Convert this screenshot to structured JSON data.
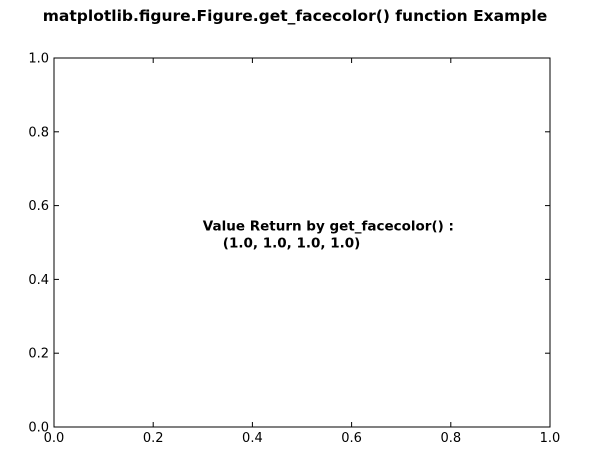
{
  "title": "matplotlib.figure.Figure.get_facecolor() function Example",
  "chart_data": {
    "type": "scatter",
    "title": "matplotlib.figure.Figure.get_facecolor() function Example",
    "xlabel": "",
    "ylabel": "",
    "xlim": [
      0.0,
      1.0
    ],
    "ylim": [
      0.0,
      1.0
    ],
    "x_ticks": [
      0.0,
      0.2,
      0.4,
      0.6,
      0.8,
      1.0
    ],
    "y_ticks": [
      0.0,
      0.2,
      0.4,
      0.6,
      0.8,
      1.0
    ],
    "x_tick_labels": [
      "0.0",
      "0.2",
      "0.4",
      "0.6",
      "0.8",
      "1.0"
    ],
    "y_tick_labels": [
      "0.0",
      "0.2",
      "0.4",
      "0.6",
      "0.8",
      "1.0"
    ],
    "grid": false,
    "series": [],
    "annotations": [
      {
        "x": 0.3,
        "y": 0.5,
        "lines": [
          "Value Return by get_facecolor() :",
          "(1.0, 1.0, 1.0, 1.0)"
        ]
      }
    ]
  },
  "colors": {
    "axes_edge": "#000000",
    "background": "#ffffff",
    "text": "#000000"
  }
}
